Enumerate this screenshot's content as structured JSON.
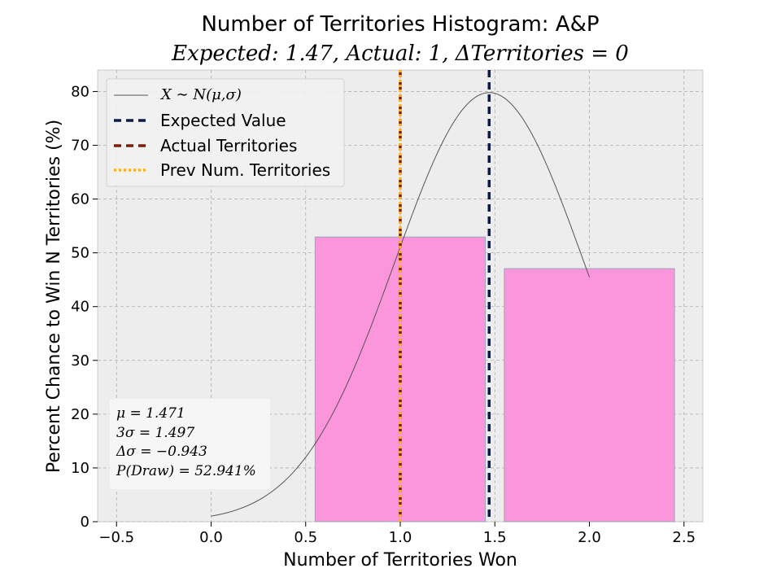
{
  "chart_data": {
    "type": "bar",
    "title": "Number of Territories Histogram: A&P",
    "subtitle": "Expected: 1.47, Actual: 1, ΔTerritories = 0",
    "xlabel": "Number of Territories Won",
    "ylabel": "Percent Chance to Win N Territories (%)",
    "xlim": [
      -0.6,
      2.6
    ],
    "ylim": [
      0,
      84
    ],
    "xticks": [
      -0.5,
      0.0,
      0.5,
      1.0,
      1.5,
      2.0,
      2.5
    ],
    "xtick_labels": [
      "−0.5",
      "0.0",
      "0.5",
      "1.0",
      "1.5",
      "2.0",
      "2.5"
    ],
    "yticks": [
      0,
      10,
      20,
      30,
      40,
      50,
      60,
      70,
      80
    ],
    "ytick_labels": [
      "0",
      "10",
      "20",
      "30",
      "40",
      "50",
      "60",
      "70",
      "80"
    ],
    "grid": true,
    "bars": [
      {
        "x": 1,
        "width": 0.9,
        "value": 52.94
      },
      {
        "x": 2,
        "width": 0.9,
        "value": 47.06
      }
    ],
    "normal_curve": {
      "mu": 1.471,
      "peak": 79.8,
      "x_start": 0.0,
      "x_end": 2.0
    },
    "vlines": [
      {
        "x": 1.47,
        "style": "dashed",
        "color": "#0d1b45",
        "label": "Expected Value"
      },
      {
        "x": 1.0,
        "style": "dashed",
        "color": "#7a1f0a",
        "label": "Actual Territories"
      },
      {
        "x": 1.0,
        "style": "dotted",
        "color": "#ffb020",
        "label": "Prev Num. Territories"
      }
    ],
    "legend": {
      "placement": "top-left",
      "entries": [
        {
          "label": "X ∼ N(μ,σ)",
          "style": "thin",
          "color": "#555555"
        },
        {
          "label": "Expected Value",
          "style": "dashed",
          "color": "#0d1b45"
        },
        {
          "label": "Actual Territories",
          "style": "dashed",
          "color": "#7a1f0a"
        },
        {
          "label": "Prev Num. Territories",
          "style": "dotted",
          "color": "#ffb020"
        }
      ]
    },
    "stats_box": {
      "placement": "bottom-left",
      "lines": [
        "μ = 1.471",
        "3σ = 1.497",
        "Δσ = −0.943",
        "P(Draw) = 52.941%"
      ]
    },
    "colors": {
      "bar": "#fb95dc",
      "bar_edge": "#8fa8b8",
      "axes_bg": "#ededed",
      "grid": "#b0b0b0"
    }
  }
}
